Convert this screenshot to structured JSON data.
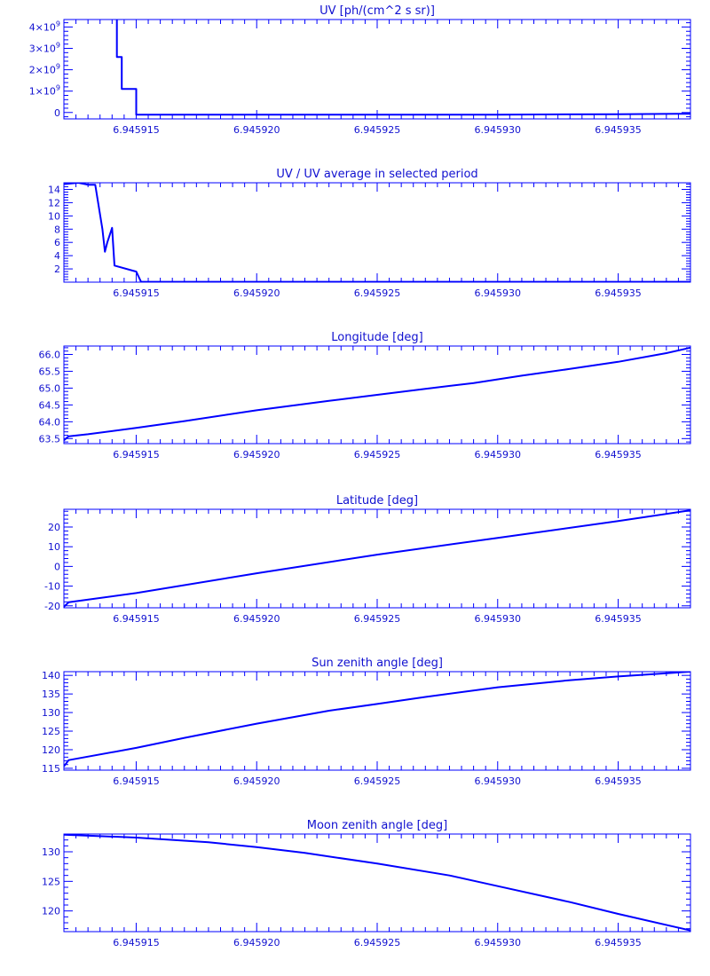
{
  "style": {
    "color": "#0000ff"
  },
  "chart_data": [
    {
      "type": "line",
      "title": "UV [ph/(cm^2 s sr)]",
      "xlim": [
        6.945912,
        6.945938
      ],
      "ylim": [
        -300000000,
        4350000000
      ],
      "x_ticks": [
        6.945915,
        6.94592,
        6.945925,
        6.94593,
        6.945935
      ],
      "x_tick_labels": [
        "6.945915",
        "6.945920",
        "6.945925",
        "6.945930",
        "6.945935"
      ],
      "y_ticks": [
        0,
        1000000000,
        2000000000,
        3000000000,
        4000000000
      ],
      "y_tick_labels": [
        {
          "mantissa": "0",
          "exponent": ""
        },
        {
          "mantissa": "1×10",
          "exponent": "9"
        },
        {
          "mantissa": "2×10",
          "exponent": "9"
        },
        {
          "mantissa": "3×10",
          "exponent": "9"
        },
        {
          "mantissa": "4×10",
          "exponent": "9"
        }
      ],
      "series": [
        {
          "x": [
            6.9459142,
            6.9459142,
            6.9459144,
            6.9459144,
            6.945915,
            6.945915,
            6.945921,
            6.94593,
            6.945935,
            6.945938
          ],
          "y": [
            4350000000,
            2600000000,
            2600000000,
            1100000000,
            1100000000,
            -100000000,
            -100000000,
            -100000000,
            -80000000,
            -60000000
          ]
        }
      ]
    },
    {
      "type": "line",
      "title": "UV / UV average in selected period",
      "xlim": [
        6.945912,
        6.945938
      ],
      "ylim": [
        0,
        15
      ],
      "x_ticks": [
        6.945915,
        6.94592,
        6.945925,
        6.94593,
        6.945935
      ],
      "x_tick_labels": [
        "6.945915",
        "6.945920",
        "6.945925",
        "6.945930",
        "6.945935"
      ],
      "y_ticks": [
        2,
        4,
        6,
        8,
        10,
        12,
        14
      ],
      "y_tick_labels": [
        "2",
        "4",
        "6",
        "8",
        "10",
        "12",
        "14"
      ],
      "series": [
        {
          "x": [
            6.945912,
            6.9459126,
            6.945913,
            6.9459133,
            6.9459136,
            6.9459137,
            6.9459138,
            6.945914,
            6.9459141,
            6.945915,
            6.9459152,
            6.94592,
            6.94593,
            6.945938
          ],
          "y": [
            14.8,
            15.0,
            14.7,
            14.7,
            8.0,
            4.6,
            6.0,
            8.2,
            2.5,
            1.6,
            0.05,
            0.05,
            0.05,
            0.05
          ]
        }
      ]
    },
    {
      "type": "line",
      "title": "Longitude [deg]",
      "xlim": [
        6.945912,
        6.945938
      ],
      "ylim": [
        63.35,
        66.25
      ],
      "x_ticks": [
        6.945915,
        6.94592,
        6.945925,
        6.94593,
        6.945935
      ],
      "x_tick_labels": [
        "6.945915",
        "6.945920",
        "6.945925",
        "6.945930",
        "6.945935"
      ],
      "y_ticks": [
        63.5,
        64.0,
        64.5,
        65.0,
        65.5,
        66.0
      ],
      "y_tick_labels": [
        "63.5",
        "64.0",
        "64.5",
        "65.0",
        "65.5",
        "66.0"
      ],
      "series": [
        {
          "x": [
            6.945912,
            6.9459122,
            6.945913,
            6.945915,
            6.945917,
            6.94592,
            6.945923,
            6.945925,
            6.945927,
            6.945929,
            6.945931,
            6.945933,
            6.945935,
            6.945937,
            6.945938
          ],
          "y": [
            63.45,
            63.57,
            63.63,
            63.82,
            64.02,
            64.34,
            64.62,
            64.8,
            64.98,
            65.15,
            65.37,
            65.57,
            65.78,
            66.04,
            66.2
          ]
        }
      ]
    },
    {
      "type": "line",
      "title": "Latitude [deg]",
      "xlim": [
        6.945912,
        6.945938
      ],
      "ylim": [
        -21,
        29
      ],
      "x_ticks": [
        6.945915,
        6.94592,
        6.945925,
        6.94593,
        6.945935
      ],
      "x_tick_labels": [
        "6.945915",
        "6.945920",
        "6.945925",
        "6.945930",
        "6.945935"
      ],
      "y_ticks": [
        -20,
        -10,
        0,
        10,
        20
      ],
      "y_tick_labels": [
        "-20",
        "-10",
        "0",
        "10",
        "20"
      ],
      "series": [
        {
          "x": [
            6.945912,
            6.9459122,
            6.945915,
            6.94592,
            6.945925,
            6.94593,
            6.945935,
            6.945938
          ],
          "y": [
            -20.5,
            -18.2,
            -13.5,
            -3.5,
            6.0,
            14.5,
            23.0,
            28.5
          ]
        }
      ]
    },
    {
      "type": "line",
      "title": "Sun zenith angle [deg]",
      "xlim": [
        6.945912,
        6.945938
      ],
      "ylim": [
        114.5,
        141
      ],
      "x_ticks": [
        6.945915,
        6.94592,
        6.945925,
        6.94593,
        6.945935
      ],
      "x_tick_labels": [
        "6.945915",
        "6.945920",
        "6.945925",
        "6.945930",
        "6.945935"
      ],
      "y_ticks": [
        115,
        120,
        125,
        130,
        135,
        140
      ],
      "y_tick_labels": [
        "115",
        "120",
        "125",
        "130",
        "135",
        "140"
      ],
      "series": [
        {
          "x": [
            6.945912,
            6.9459122,
            6.945915,
            6.945917,
            6.94592,
            6.945923,
            6.945925,
            6.945927,
            6.94593,
            6.945933,
            6.945935,
            6.945938
          ],
          "y": [
            115.5,
            117.2,
            120.5,
            123.2,
            127.0,
            130.5,
            132.3,
            134.2,
            136.8,
            138.7,
            139.7,
            141.0
          ]
        }
      ]
    },
    {
      "type": "line",
      "title": "Moon zenith angle [deg]",
      "xlim": [
        6.945912,
        6.945938
      ],
      "ylim": [
        116.5,
        133
      ],
      "x_ticks": [
        6.945915,
        6.94592,
        6.945925,
        6.94593,
        6.945935
      ],
      "x_tick_labels": [
        "6.945915",
        "6.945920",
        "6.945925",
        "6.945930",
        "6.945935"
      ],
      "y_ticks": [
        120,
        125,
        130
      ],
      "y_tick_labels": [
        "120",
        "125",
        "130"
      ],
      "series": [
        {
          "x": [
            6.945912,
            6.945915,
            6.945918,
            6.94592,
            6.945922,
            6.945925,
            6.945928,
            6.94593,
            6.945933,
            6.945935,
            6.945938
          ],
          "y": [
            132.9,
            132.4,
            131.6,
            130.8,
            129.8,
            128.0,
            126.0,
            124.2,
            121.5,
            119.5,
            116.7
          ]
        }
      ]
    }
  ]
}
